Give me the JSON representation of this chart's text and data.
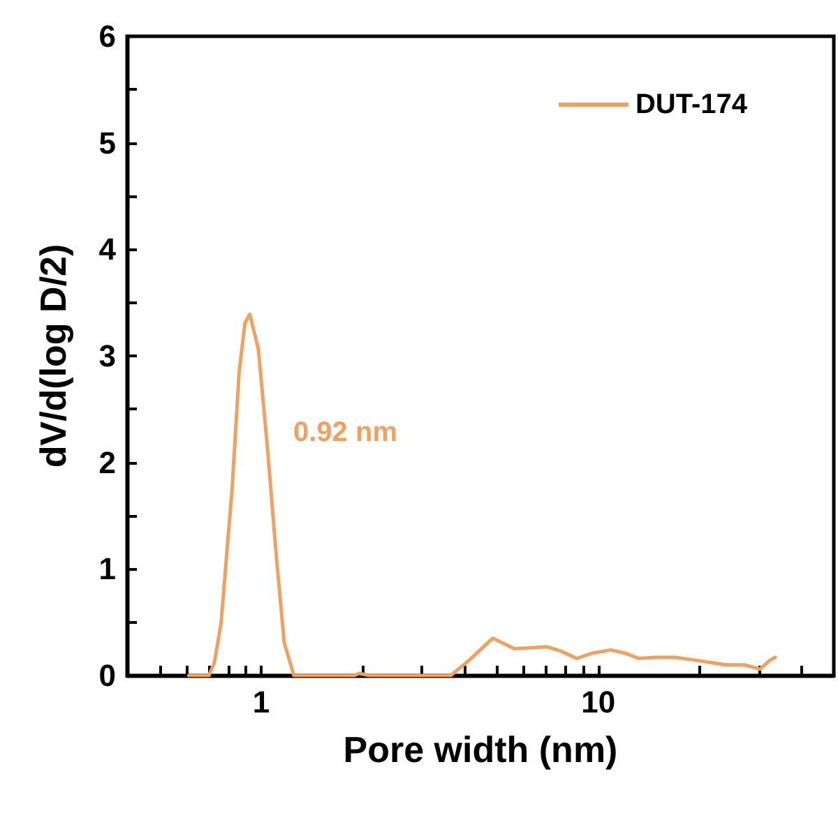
{
  "chart_data": {
    "type": "line",
    "xlabel": "Pore width (nm)",
    "ylabel": "dV/d(log D/2)",
    "log": "x",
    "xlim": [
      0.4,
      50
    ],
    "ylim": [
      0,
      6
    ],
    "xticks": [
      {
        "value": 0.4,
        "label": null
      },
      {
        "value": 0.5,
        "label": null
      },
      {
        "value": 0.6,
        "label": null
      },
      {
        "value": 0.7,
        "label": null
      },
      {
        "value": 0.8,
        "label": null
      },
      {
        "value": 0.9,
        "label": null
      },
      1,
      {
        "value": 2,
        "label": null
      },
      {
        "value": 3,
        "label": null
      },
      {
        "value": 4,
        "label": null
      },
      {
        "value": 5,
        "label": null
      },
      {
        "value": 6,
        "label": null
      },
      {
        "value": 7,
        "label": null
      },
      {
        "value": 8,
        "label": null
      },
      {
        "value": 9,
        "label": null
      },
      10,
      {
        "value": 20,
        "label": null
      },
      {
        "value": 30,
        "label": null
      },
      {
        "value": 40,
        "label": null
      },
      {
        "value": 50,
        "label": null
      }
    ],
    "yticks": [
      0,
      {
        "value": 0.5,
        "label": null
      },
      1,
      {
        "value": 1.5,
        "label": null
      },
      2,
      {
        "value": 2.5,
        "label": null
      },
      3,
      {
        "value": 3.5,
        "label": null
      },
      4,
      {
        "value": 4.5,
        "label": null
      },
      5,
      {
        "value": 5.5,
        "label": null
      },
      6
    ],
    "grid": false,
    "legend": "top right",
    "marker": "none",
    "line_style": "solid",
    "annotations": [
      "0.92 nm"
    ],
    "series": [
      {
        "name": "DUT-174",
        "color": "#f0a060",
        "x": [
          0.61,
          0.7,
          0.726,
          0.76,
          0.82,
          0.86,
          0.895,
          0.925,
          0.98,
          1.04,
          1.11,
          1.17,
          1.25,
          1.89,
          1.95,
          2.1,
          3.65,
          4.13,
          4.86,
          5.65,
          7.04,
          7.73,
          8.63,
          9.63,
          10.9,
          12.0,
          13.2,
          14.9,
          16.9,
          19.8,
          23.9,
          27.1,
          30.2,
          32.2,
          33.5
        ],
        "values": [
          0,
          0,
          0.12,
          0.49,
          1.76,
          2.85,
          3.31,
          3.39,
          3.07,
          2.19,
          1.1,
          0.31,
          0,
          0,
          0.02,
          0,
          0,
          0.14,
          0.35,
          0.25,
          0.27,
          0.23,
          0.16,
          0.21,
          0.24,
          0.21,
          0.16,
          0.17,
          0.17,
          0.14,
          0.1,
          0.1,
          0.06,
          0.14,
          0.17
        ]
      }
    ]
  }
}
